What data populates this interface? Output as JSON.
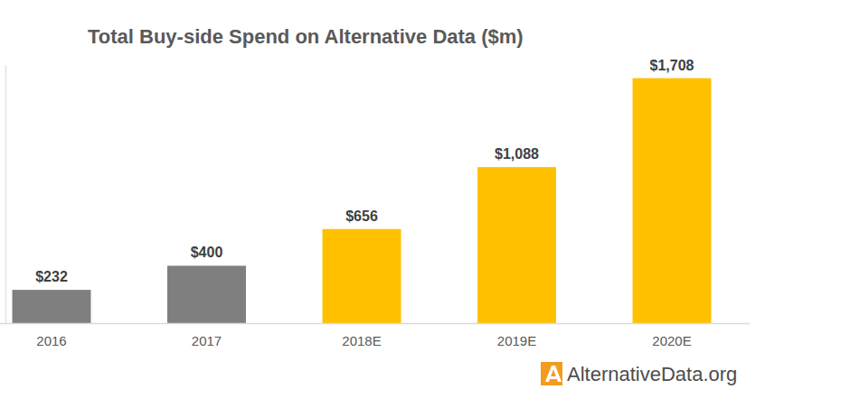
{
  "chart_data": {
    "type": "bar",
    "title": "Total Buy-side Spend on Alternative Data ($m)",
    "categories": [
      "2016",
      "2017",
      "2018E",
      "2019E",
      "2020E"
    ],
    "values": [
      232,
      400,
      656,
      1088,
      1708
    ],
    "value_labels": [
      "$232",
      "$400",
      "$656",
      "$1,088",
      "$1,708"
    ],
    "colors": [
      "#7f7f7f",
      "#7f7f7f",
      "#ffc000",
      "#ffc000",
      "#ffc000"
    ],
    "ylim": [
      0,
      1800
    ],
    "yticks": [],
    "grid": false,
    "data_labels": true,
    "tick_labels": "x",
    "annotations": [
      "AlternativeData.org"
    ]
  }
}
